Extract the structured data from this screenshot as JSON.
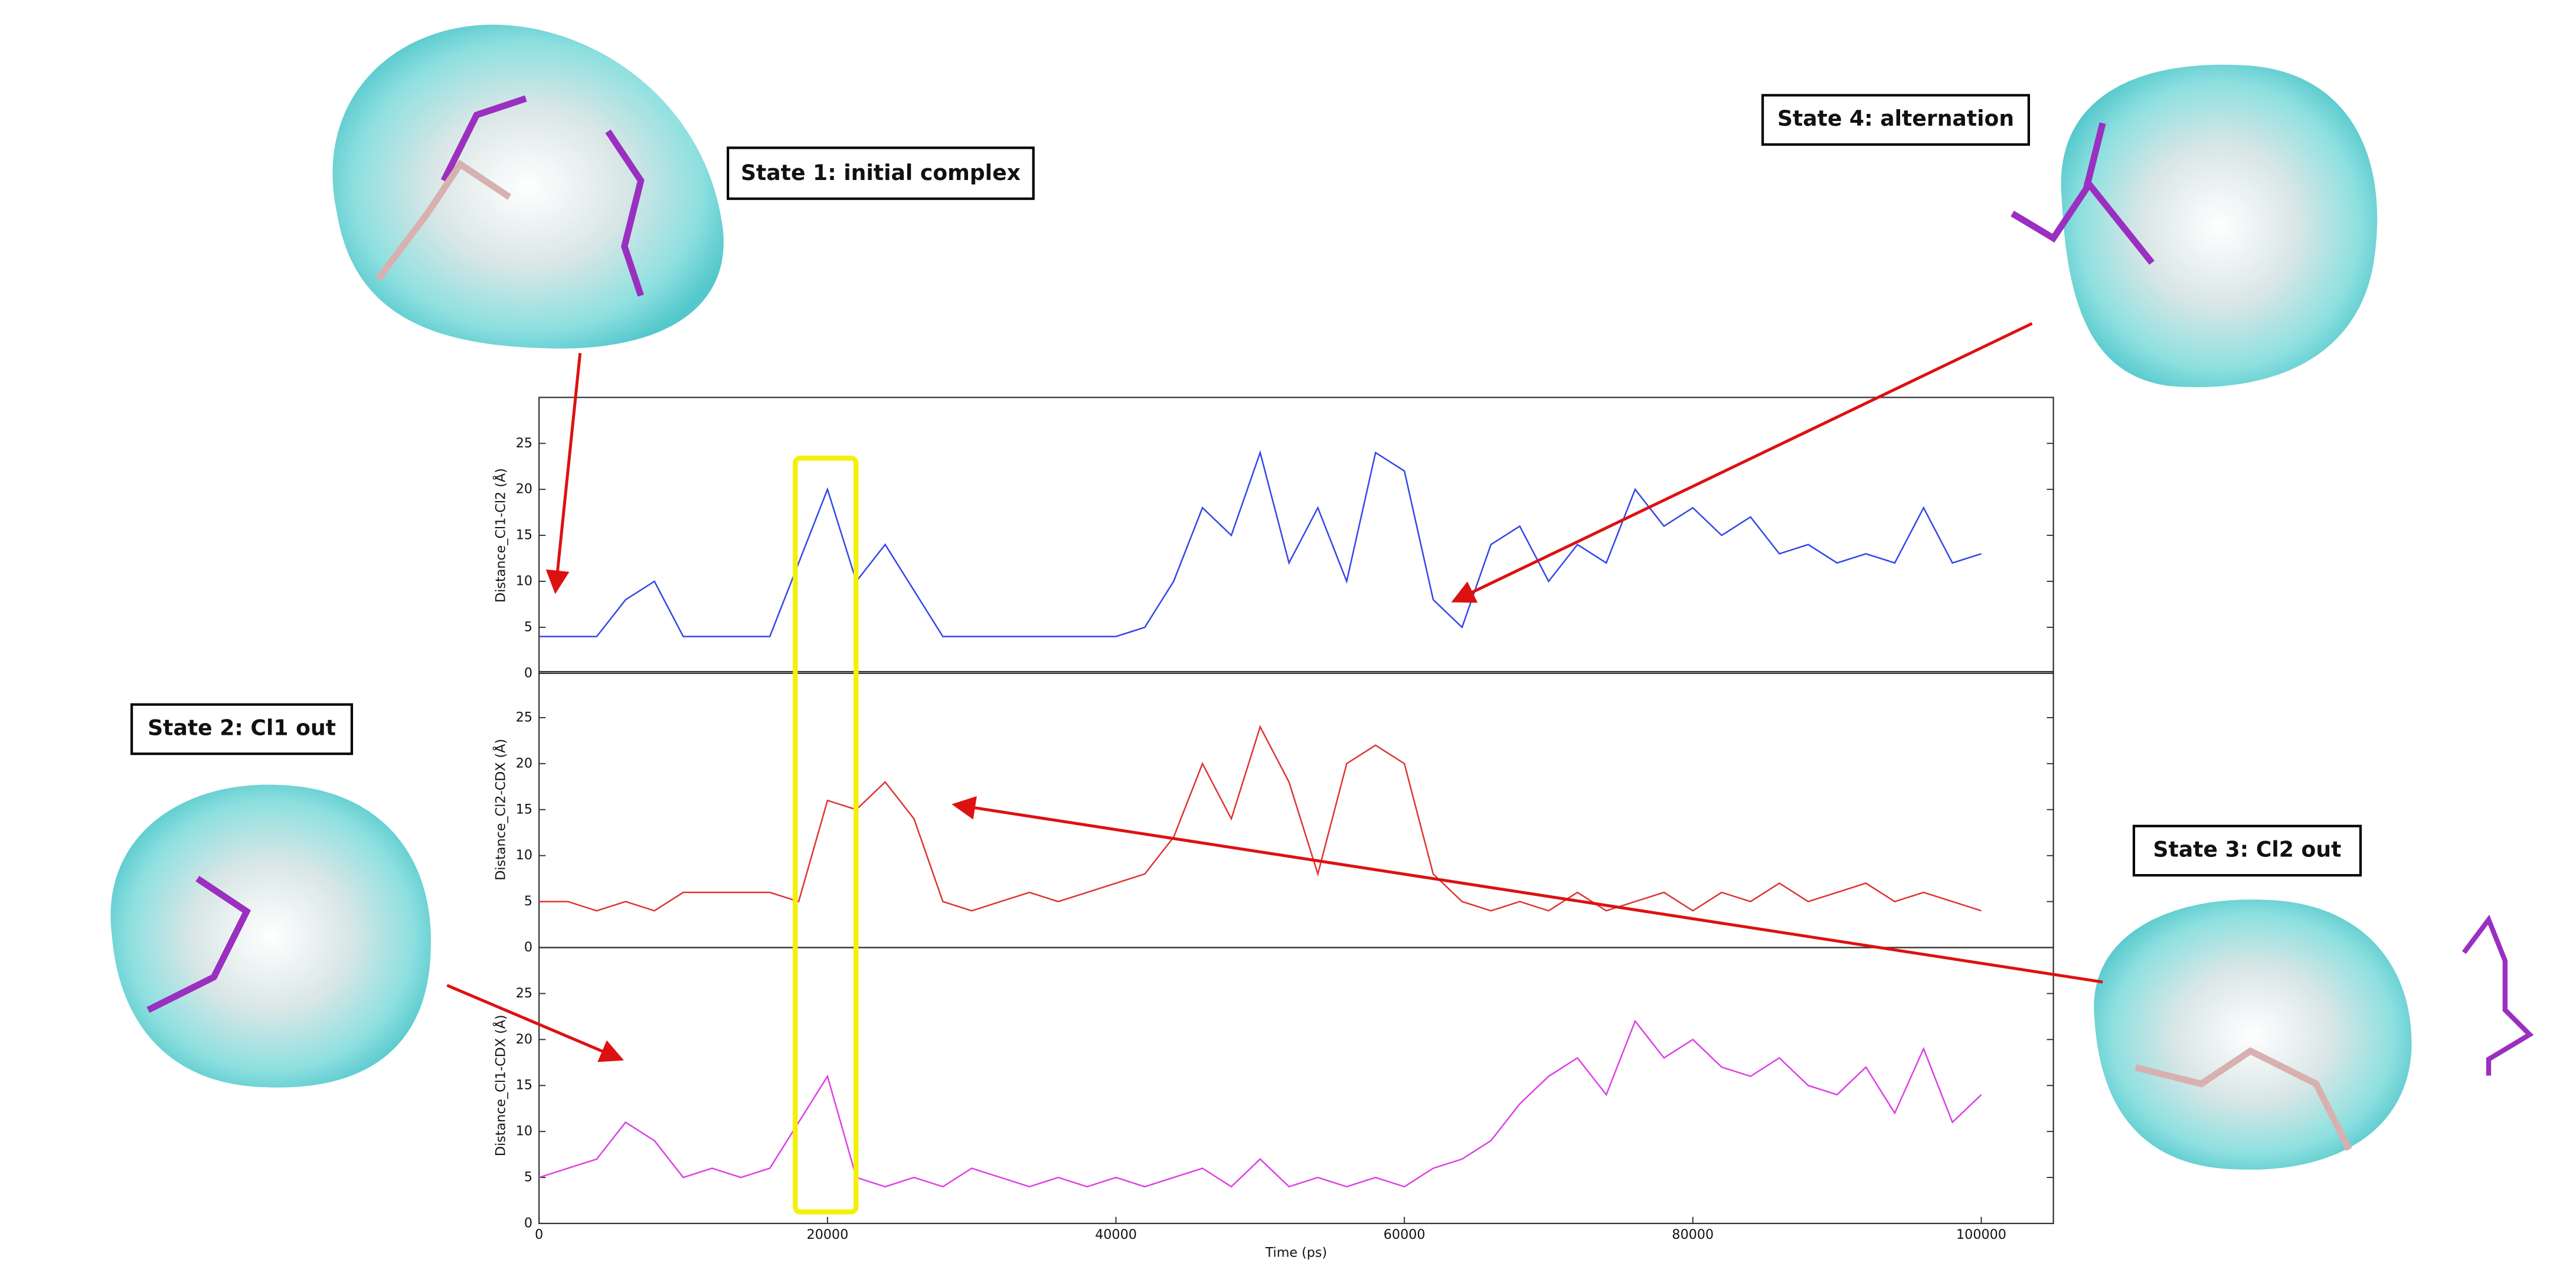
{
  "chart_data": [
    {
      "type": "line",
      "ylabel": "Distance_Cl1-Cl2 (Å)",
      "xlim": [
        0,
        105000
      ],
      "ylim": [
        0,
        30
      ],
      "yticks": [
        0,
        5,
        10,
        15,
        20,
        25
      ],
      "x": [
        0,
        2000,
        4000,
        6000,
        8000,
        10000,
        12000,
        14000,
        16000,
        18000,
        20000,
        22000,
        24000,
        26000,
        28000,
        30000,
        32000,
        34000,
        36000,
        38000,
        40000,
        42000,
        44000,
        46000,
        48000,
        50000,
        52000,
        54000,
        56000,
        58000,
        60000,
        62000,
        64000,
        66000,
        68000,
        70000,
        72000,
        74000,
        76000,
        78000,
        80000,
        82000,
        84000,
        86000,
        88000,
        90000,
        92000,
        94000,
        96000,
        98000,
        100000
      ],
      "series": [
        {
          "color": "#3347e8",
          "values": [
            4,
            4,
            4,
            8,
            10,
            4,
            4,
            4,
            4,
            12,
            20,
            10,
            14,
            9,
            4,
            4,
            4,
            4,
            4,
            4,
            4,
            5,
            10,
            18,
            15,
            24,
            12,
            18,
            10,
            24,
            22,
            8,
            5,
            14,
            16,
            10,
            14,
            12,
            20,
            16,
            18,
            15,
            17,
            13,
            14,
            12,
            13,
            12,
            18,
            12,
            13
          ]
        }
      ]
    },
    {
      "type": "line",
      "ylabel": "Distance_Cl2-CDX (Å)",
      "xlim": [
        0,
        105000
      ],
      "ylim": [
        0,
        30
      ],
      "yticks": [
        0,
        5,
        10,
        15,
        20,
        25
      ],
      "x": [
        0,
        2000,
        4000,
        6000,
        8000,
        10000,
        12000,
        14000,
        16000,
        18000,
        20000,
        22000,
        24000,
        26000,
        28000,
        30000,
        32000,
        34000,
        36000,
        38000,
        40000,
        42000,
        44000,
        46000,
        48000,
        50000,
        52000,
        54000,
        56000,
        58000,
        60000,
        62000,
        64000,
        66000,
        68000,
        70000,
        72000,
        74000,
        76000,
        78000,
        80000,
        82000,
        84000,
        86000,
        88000,
        90000,
        92000,
        94000,
        96000,
        98000,
        100000
      ],
      "series": [
        {
          "color": "#dd3434",
          "values": [
            5,
            5,
            4,
            5,
            4,
            6,
            6,
            6,
            6,
            5,
            16,
            15,
            18,
            14,
            5,
            4,
            5,
            6,
            5,
            6,
            7,
            8,
            12,
            20,
            14,
            24,
            18,
            8,
            20,
            22,
            20,
            8,
            5,
            4,
            5,
            4,
            6,
            4,
            5,
            6,
            4,
            6,
            5,
            7,
            5,
            6,
            7,
            5,
            6,
            5,
            4
          ]
        }
      ]
    },
    {
      "type": "line",
      "ylabel": "Distance_Cl1-CDX (Å)",
      "xlabel": "Time (ps)",
      "xlim": [
        0,
        105000
      ],
      "ylim": [
        0,
        30
      ],
      "yticks": [
        0,
        5,
        10,
        15,
        20,
        25
      ],
      "xticks": [
        0,
        20000,
        40000,
        60000,
        80000,
        100000
      ],
      "x": [
        0,
        2000,
        4000,
        6000,
        8000,
        10000,
        12000,
        14000,
        16000,
        18000,
        20000,
        22000,
        24000,
        26000,
        28000,
        30000,
        32000,
        34000,
        36000,
        38000,
        40000,
        42000,
        44000,
        46000,
        48000,
        50000,
        52000,
        54000,
        56000,
        58000,
        60000,
        62000,
        64000,
        66000,
        68000,
        70000,
        72000,
        74000,
        76000,
        78000,
        80000,
        82000,
        84000,
        86000,
        88000,
        90000,
        92000,
        94000,
        96000,
        98000,
        100000
      ],
      "series": [
        {
          "color": "#dd40e6",
          "values": [
            5,
            6,
            7,
            11,
            9,
            5,
            6,
            5,
            6,
            11,
            16,
            5,
            4,
            5,
            4,
            6,
            5,
            4,
            5,
            4,
            5,
            4,
            5,
            6,
            4,
            7,
            4,
            5,
            4,
            5,
            4,
            6,
            7,
            9,
            13,
            16,
            18,
            14,
            22,
            18,
            20,
            17,
            16,
            18,
            15,
            14,
            17,
            12,
            19,
            11,
            14
          ]
        }
      ]
    }
  ],
  "annotations": [
    "State 1: initial complex",
    "State 4: alternation",
    "State 2: Cl1 out",
    "State 3: Cl2 out"
  ]
}
